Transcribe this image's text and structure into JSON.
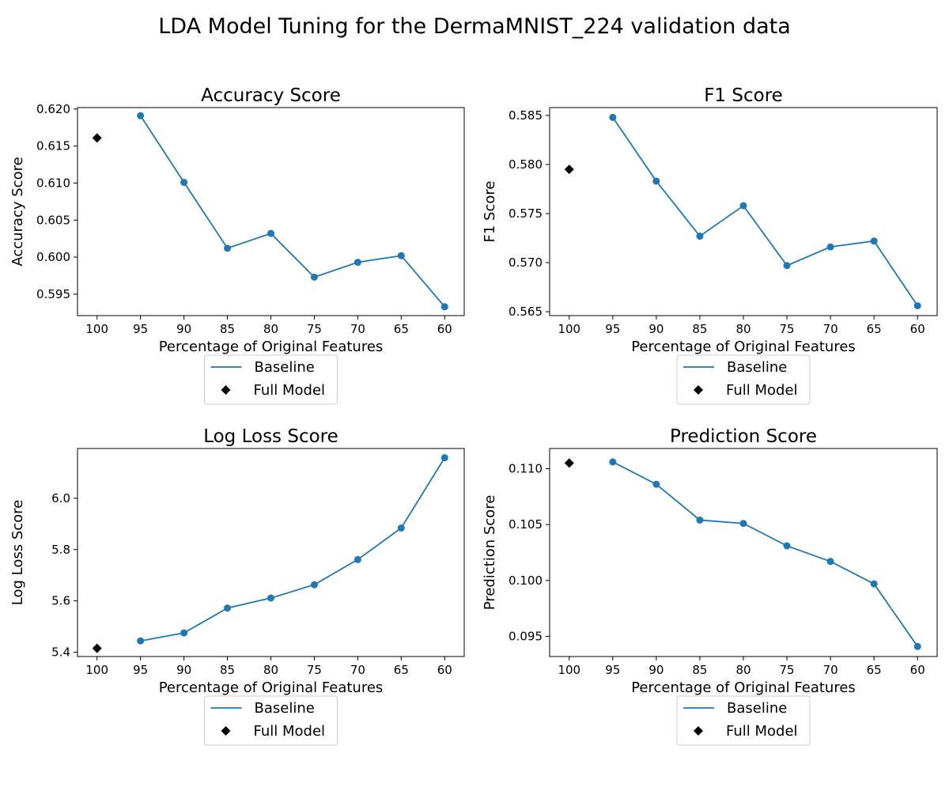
{
  "figure": {
    "title": "LDA Model Tuning for the DermaMNIST_224 validation data"
  },
  "colors": {
    "baseline": "#1f77b4",
    "full_model": "#000000",
    "axes": "#000000",
    "legend_border": "#cccccc"
  },
  "chart_data": [
    {
      "type": "line",
      "title": "Accuracy Score",
      "xlabel": "Percentage of Original Features",
      "ylabel": "Accuracy Score",
      "x": [
        95,
        90,
        85,
        80,
        75,
        70,
        65,
        60
      ],
      "x_ticks": [
        100,
        95,
        90,
        85,
        80,
        75,
        70,
        65,
        60
      ],
      "x_inverted": true,
      "yticks": [
        "0.595",
        "0.600",
        "0.605",
        "0.610",
        "0.615",
        "0.620"
      ],
      "ylim": [
        0.5921,
        0.6202
      ],
      "series": [
        {
          "name": "Baseline",
          "marker": "circle",
          "x": [
            95,
            90,
            85,
            80,
            75,
            70,
            65,
            60
          ],
          "values": [
            0.6191,
            0.6101,
            0.6012,
            0.6032,
            0.5973,
            0.5993,
            0.6002,
            0.5933
          ]
        },
        {
          "name": "Full Model",
          "marker": "diamond",
          "x": [
            100
          ],
          "values": [
            0.6161
          ]
        }
      ],
      "legend": {
        "placement": "below",
        "entries": [
          "Baseline",
          "Full Model"
        ]
      },
      "grid": false
    },
    {
      "type": "line",
      "title": "F1 Score",
      "xlabel": "Percentage of Original Features",
      "ylabel": "F1 Score",
      "x": [
        95,
        90,
        85,
        80,
        75,
        70,
        65,
        60
      ],
      "x_ticks": [
        100,
        95,
        90,
        85,
        80,
        75,
        70,
        65,
        60
      ],
      "x_inverted": true,
      "yticks": [
        "0.565",
        "0.570",
        "0.575",
        "0.580",
        "0.585"
      ],
      "ylim": [
        0.5646,
        0.5858
      ],
      "series": [
        {
          "name": "Baseline",
          "marker": "circle",
          "x": [
            95,
            90,
            85,
            80,
            75,
            70,
            65,
            60
          ],
          "values": [
            0.5848,
            0.5783,
            0.5727,
            0.5758,
            0.5697,
            0.5716,
            0.5722,
            0.5656
          ]
        },
        {
          "name": "Full Model",
          "marker": "diamond",
          "x": [
            100
          ],
          "values": [
            0.5795
          ]
        }
      ],
      "legend": {
        "placement": "below",
        "entries": [
          "Baseline",
          "Full Model"
        ]
      },
      "grid": false
    },
    {
      "type": "line",
      "title": "Log Loss Score",
      "xlabel": "Percentage of Original Features",
      "ylabel": "Log Loss Score",
      "x": [
        95,
        90,
        85,
        80,
        75,
        70,
        65,
        60
      ],
      "x_ticks": [
        100,
        95,
        90,
        85,
        80,
        75,
        70,
        65,
        60
      ],
      "x_inverted": true,
      "yticks": [
        "5.4",
        "5.6",
        "5.8",
        "6.0"
      ],
      "ylim": [
        5.383,
        6.194
      ],
      "series": [
        {
          "name": "Baseline",
          "marker": "circle",
          "x": [
            95,
            90,
            85,
            80,
            75,
            70,
            65,
            60
          ],
          "values": [
            5.444,
            5.475,
            5.572,
            5.611,
            5.663,
            5.761,
            5.884,
            6.158
          ]
        },
        {
          "name": "Full Model",
          "marker": "diamond",
          "x": [
            100
          ],
          "values": [
            5.415
          ]
        }
      ],
      "legend": {
        "placement": "below",
        "entries": [
          "Baseline",
          "Full Model"
        ]
      },
      "grid": false
    },
    {
      "type": "line",
      "title": "Prediction Score",
      "xlabel": "Percentage of Original Features",
      "ylabel": "Prediction Score",
      "x": [
        95,
        90,
        85,
        80,
        75,
        70,
        65,
        60
      ],
      "x_ticks": [
        100,
        95,
        90,
        85,
        80,
        75,
        70,
        65,
        60
      ],
      "x_inverted": true,
      "yticks": [
        "0.095",
        "0.100",
        "0.105",
        "0.110"
      ],
      "ylim": [
        0.0932,
        0.1118
      ],
      "series": [
        {
          "name": "Baseline",
          "marker": "circle",
          "x": [
            95,
            90,
            85,
            80,
            75,
            70,
            65,
            60
          ],
          "values": [
            0.1106,
            0.1086,
            0.1054,
            0.1051,
            0.1031,
            0.1017,
            0.0997,
            0.0941
          ]
        },
        {
          "name": "Full Model",
          "marker": "diamond",
          "x": [
            100
          ],
          "values": [
            0.1105
          ]
        }
      ],
      "legend": {
        "placement": "below",
        "entries": [
          "Baseline",
          "Full Model"
        ]
      },
      "grid": false
    }
  ]
}
